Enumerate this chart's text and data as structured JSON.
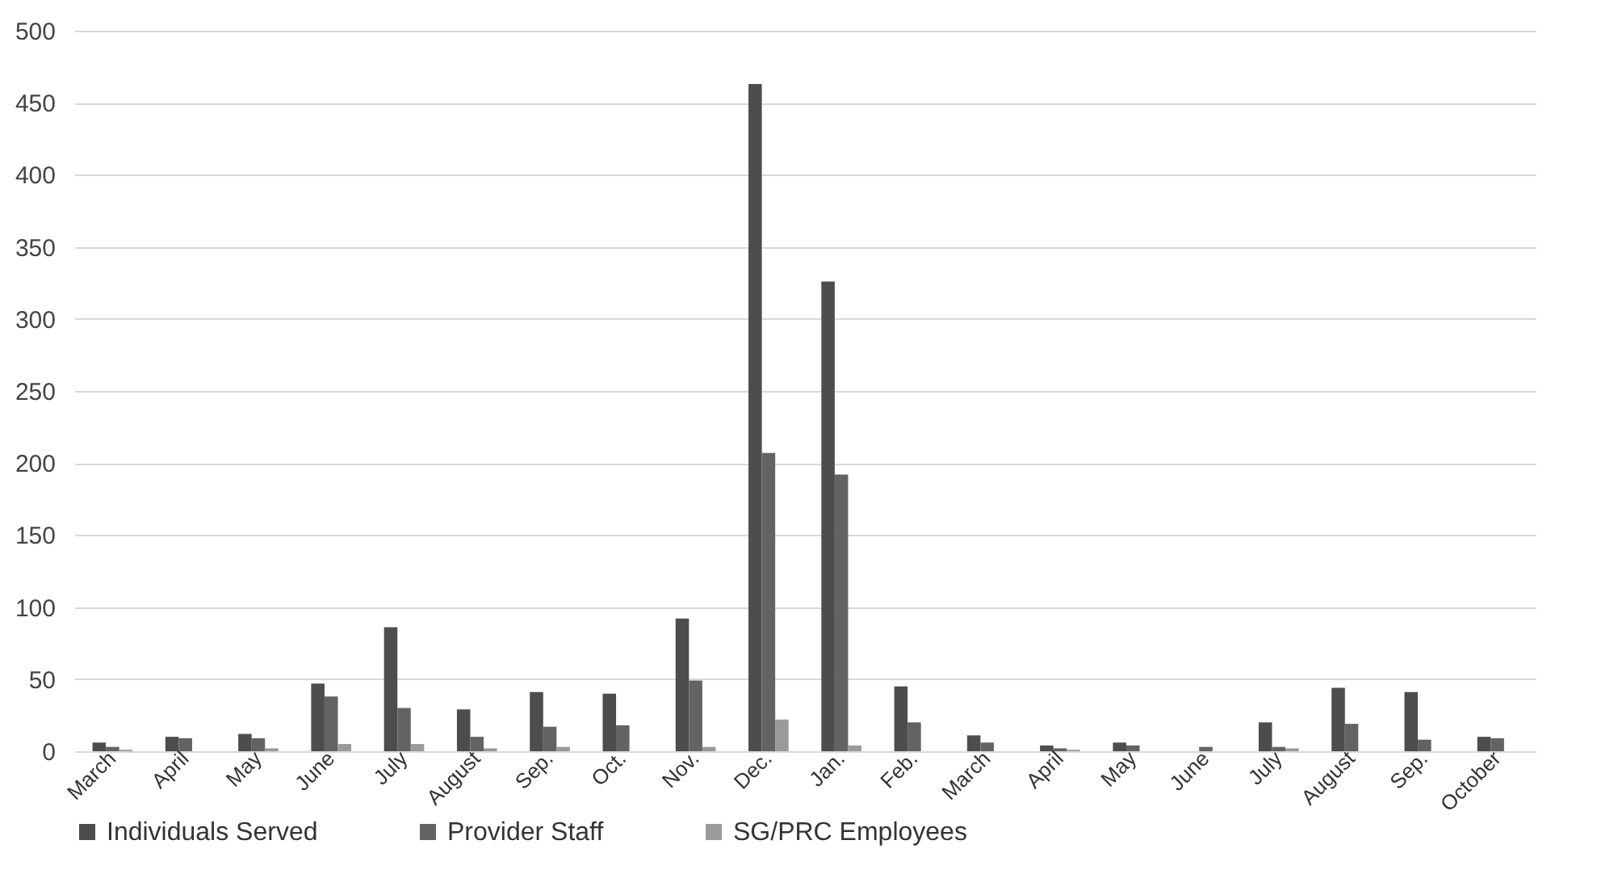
{
  "chart_data": {
    "type": "bar",
    "categories": [
      "March",
      "April",
      "May",
      "June",
      "July",
      "August",
      "Sep.",
      "Oct.",
      "Nov.",
      "Dec.",
      "Jan.",
      "Feb.",
      "March",
      "April",
      "May",
      "June",
      "July",
      "August",
      "Sep.",
      "October"
    ],
    "series": [
      {
        "name": "Individuals Served",
        "color": "#4d4d4d",
        "values": [
          6,
          10,
          12,
          47,
          86,
          29,
          41,
          40,
          92,
          463,
          326,
          45,
          11,
          4,
          6,
          0,
          20,
          44,
          41,
          10
        ]
      },
      {
        "name": "Provider Staff",
        "color": "#636363",
        "values": [
          3,
          9,
          9,
          38,
          30,
          10,
          17,
          18,
          49,
          207,
          192,
          20,
          6,
          2,
          4,
          3,
          3,
          19,
          8,
          9
        ]
      },
      {
        "name": "SG/PRC Employees",
        "color": "#9a9a9a",
        "values": [
          1,
          0,
          2,
          5,
          5,
          2,
          3,
          0,
          3,
          22,
          4,
          0,
          0,
          1,
          0,
          0,
          2,
          0,
          0,
          0
        ]
      }
    ],
    "ylim": [
      0,
      500
    ],
    "yticks": [
      0,
      50,
      100,
      150,
      200,
      250,
      300,
      350,
      400,
      450,
      500
    ],
    "grid": "y",
    "legend": "bottom"
  }
}
